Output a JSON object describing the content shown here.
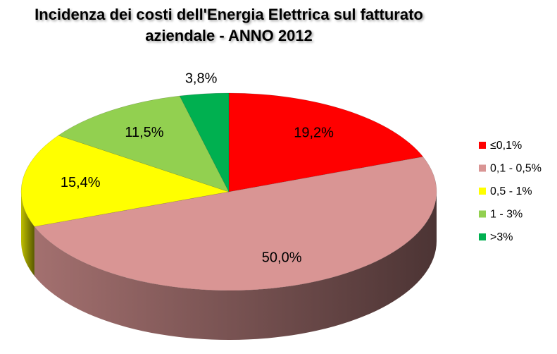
{
  "chart_data": {
    "type": "pie3d",
    "title": "Incidenza dei costi dell'Energia Elettrica sul fatturato aziendale - ANNO 2012",
    "categories": [
      "≤0,1%",
      "0,1 - 0,5%",
      "0,5 - 1%",
      "1 - 3%",
      ">3%"
    ],
    "values": [
      19.2,
      50.0,
      15.4,
      11.5,
      3.8
    ],
    "value_labels": [
      "19,2%",
      "50,0%",
      "15,4%",
      "11,5%",
      "3,8%"
    ],
    "colors": [
      "#ff0000",
      "#d99594",
      "#ffff00",
      "#92d050",
      "#00b050"
    ],
    "legend": "right"
  }
}
